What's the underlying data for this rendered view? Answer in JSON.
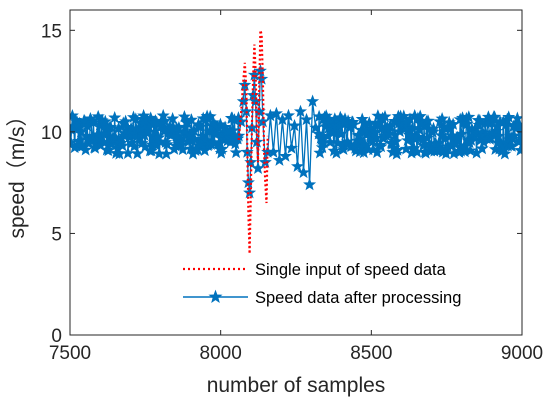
{
  "chart_data": {
    "type": "line",
    "title": "",
    "xlabel": "number of samples",
    "ylabel": "speed（m/s）",
    "xlim": [
      7500,
      9000
    ],
    "ylim": [
      0,
      16
    ],
    "x_ticks": [
      "7500",
      "8000",
      "8500",
      "9000"
    ],
    "y_ticks": [
      "0",
      "5",
      "10",
      "15"
    ],
    "grid": false,
    "legend_position": "bottom-right",
    "series": [
      {
        "name": "Single input of speed data",
        "style": "dotted",
        "color": "#ff0000",
        "x": [
          8060,
          8068,
          8075,
          8080,
          8085,
          8088,
          8092,
          8096,
          8100,
          8104,
          8108,
          8112,
          8116,
          8120,
          8124,
          8128,
          8132,
          8136,
          8140,
          8144,
          8148,
          8152,
          8156
        ],
        "y": [
          9.6,
          11.0,
          12.5,
          13.4,
          12.2,
          9.5,
          6.0,
          4.0,
          7.0,
          10.5,
          12.8,
          14.3,
          13.0,
          10.0,
          8.5,
          12.0,
          15.0,
          14.8,
          12.5,
          9.0,
          7.5,
          6.5,
          9.8
        ]
      },
      {
        "name": "Speed data after processing",
        "style": "solid",
        "marker": "star",
        "color": "#0072bd",
        "x": [
          7500,
          9000
        ],
        "y": [
          9.8,
          9.8
        ],
        "noise_band": [
          8.9,
          10.8
        ],
        "disturbance": {
          "x": [
            8060,
            8068,
            8075,
            8080,
            8085,
            8088,
            8092,
            8096,
            8100,
            8104,
            8108,
            8112,
            8116,
            8120,
            8124,
            8128,
            8132,
            8136,
            8140,
            8148,
            8156,
            8165,
            8175,
            8185,
            8195,
            8205,
            8215,
            8225,
            8235,
            8245,
            8255,
            8265,
            8275,
            8285,
            8295,
            8305,
            8315,
            8325
          ],
          "y": [
            9.8,
            10.5,
            11.5,
            12.3,
            11.0,
            9.0,
            7.5,
            7.0,
            8.5,
            10.2,
            11.8,
            12.8,
            11.5,
            9.5,
            8.2,
            11.0,
            13.0,
            12.6,
            10.5,
            8.5,
            9.0,
            10.8,
            9.0,
            10.9,
            8.6,
            10.6,
            8.8,
            10.8,
            9.2,
            10.3,
            8.3,
            11.0,
            8.0,
            10.6,
            7.4,
            11.5,
            10.2,
            9.9
          ]
        }
      }
    ]
  }
}
